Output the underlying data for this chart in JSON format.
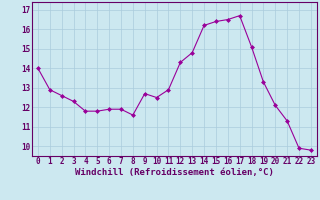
{
  "x": [
    0,
    1,
    2,
    3,
    4,
    5,
    6,
    7,
    8,
    9,
    10,
    11,
    12,
    13,
    14,
    15,
    16,
    17,
    18,
    19,
    20,
    21,
    22,
    23
  ],
  "y": [
    14.0,
    12.9,
    12.6,
    12.3,
    11.8,
    11.8,
    11.9,
    11.9,
    11.6,
    12.7,
    12.5,
    12.9,
    14.3,
    14.8,
    16.2,
    16.4,
    16.5,
    16.7,
    15.1,
    13.3,
    12.1,
    11.3,
    9.9,
    9.8
  ],
  "line_color": "#990099",
  "marker": "D",
  "marker_size": 2,
  "bg_color": "#cce8f0",
  "grid_color": "#aaccdd",
  "xlabel": "Windchill (Refroidissement éolien,°C)",
  "xlabel_color": "#660066",
  "xlabel_fontsize": 6.5,
  "tick_color": "#660066",
  "tick_fontsize": 5.5,
  "ylim": [
    9.5,
    17.4
  ],
  "xlim": [
    -0.5,
    23.5
  ],
  "yticks": [
    10,
    11,
    12,
    13,
    14,
    15,
    16,
    17
  ],
  "xticks": [
    0,
    1,
    2,
    3,
    4,
    5,
    6,
    7,
    8,
    9,
    10,
    11,
    12,
    13,
    14,
    15,
    16,
    17,
    18,
    19,
    20,
    21,
    22,
    23
  ]
}
